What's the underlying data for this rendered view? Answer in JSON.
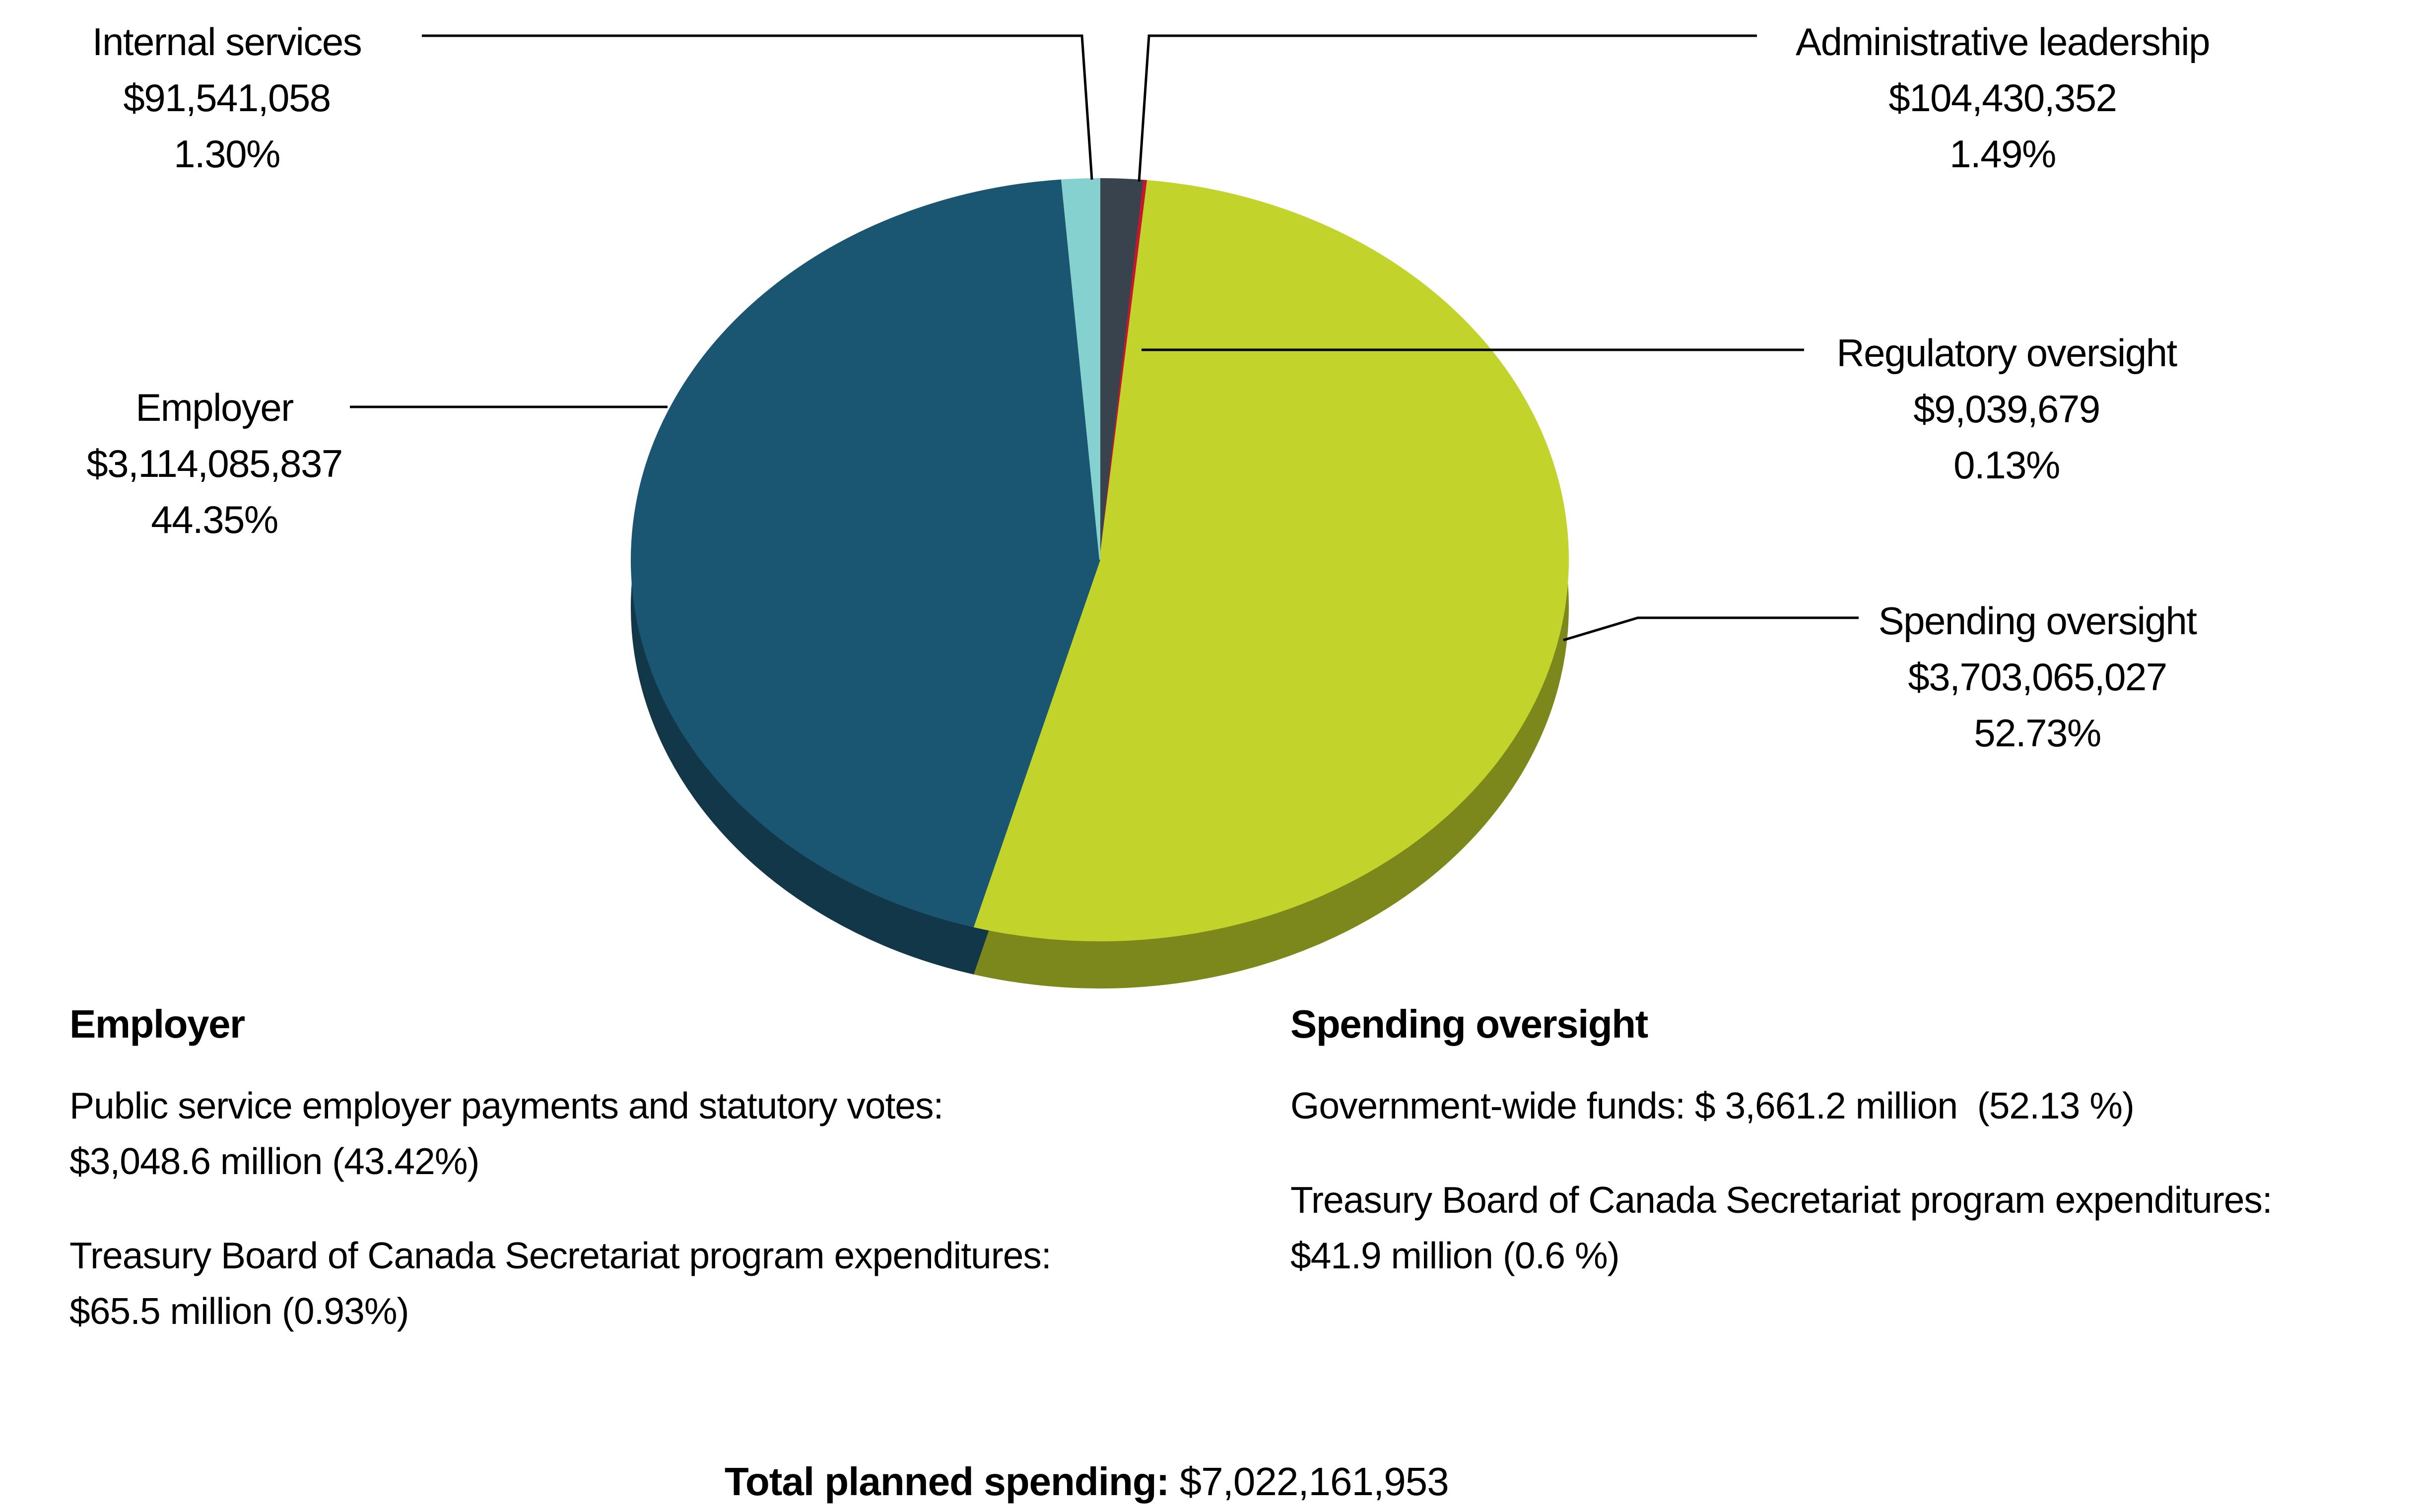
{
  "chart_data": {
    "type": "pie",
    "title": "",
    "style": "3d-pie-with-callouts",
    "legend_position": "callout-labels",
    "series": [
      {
        "name": "Administrative leadership",
        "value": 104430352,
        "pct": 1.49,
        "color": "#39434e",
        "amount_label": "$104,430,352",
        "pct_label": "1.49%"
      },
      {
        "name": "Regulatory oversight",
        "value": 9039679,
        "pct": 0.13,
        "color": "#c4162c",
        "amount_label": "$9,039,679",
        "pct_label": "0.13%"
      },
      {
        "name": "Spending oversight",
        "value": 3703065027,
        "pct": 52.73,
        "color": "#c2d32c",
        "amount_label": "$3,703,065,027",
        "pct_label": "52.73%"
      },
      {
        "name": "Employer",
        "value": 3114085837,
        "pct": 44.35,
        "color": "#1a5671",
        "amount_label": "$3,114,085,837",
        "pct_label": "44.35%"
      },
      {
        "name": "Internal services",
        "value": 91541058,
        "pct": 1.3,
        "color": "#84d1cf",
        "amount_label": "$91,541,058",
        "pct_label": "1.30%"
      }
    ],
    "total": 7022161953
  },
  "notes": {
    "employer": {
      "heading": "Employer",
      "p1l1": "Public service employer payments and statutory votes:",
      "p1l2": "$3,048.6 million (43.42%)",
      "p2l1": "Treasury Board of Canada Secretariat program expenditures:",
      "p2l2": "$65.5 million (0.93%)"
    },
    "spending": {
      "heading": "Spending oversight",
      "p1l1": "Government-wide funds: $ 3,661.2 million  (52.13 %)",
      "p2l1": "Treasury Board of Canada Secretariat program expenditures:",
      "p2l2": "$41.9 million (0.6 %)"
    }
  },
  "footer": {
    "total_label": "Total planned spending:",
    "total_value": "$7,022,161,953"
  }
}
